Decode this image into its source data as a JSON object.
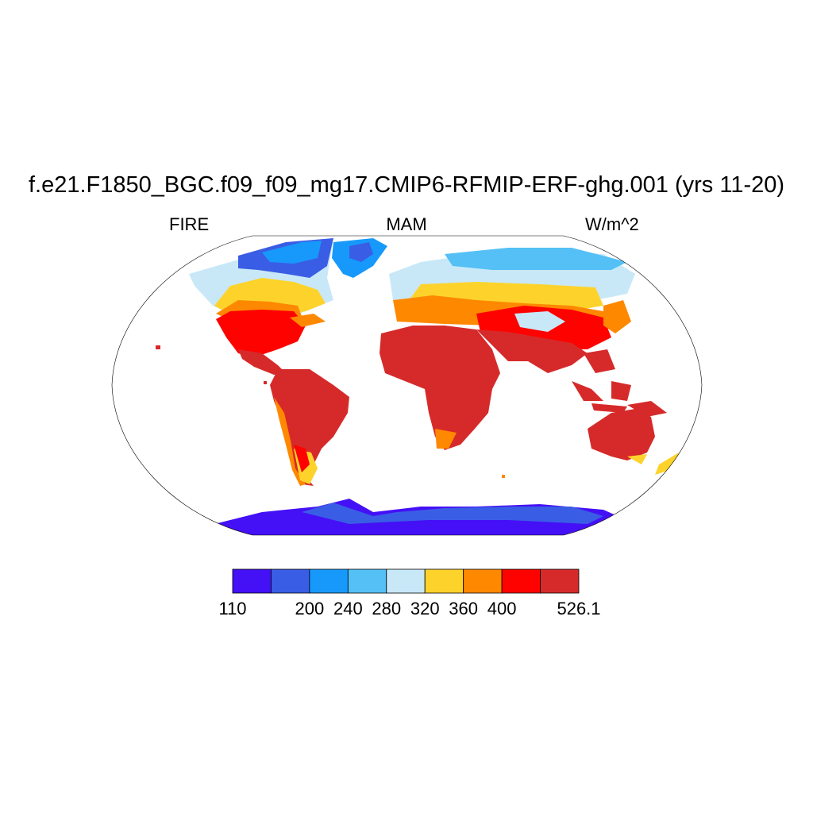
{
  "title": "f.e21.F1850_BGC.f09_f09_mg17.CMIP6-RFMIP-ERF-ghg.001 (yrs 11-20)",
  "subtitle": {
    "left": "FIRE",
    "center": "MAM",
    "right": "W/m^2"
  },
  "colorbar": {
    "colors": [
      "#4410f6",
      "#3a5de5",
      "#1799fb",
      "#54c0f5",
      "#c8e8f8",
      "#fdd32b",
      "#fe8800",
      "#fe0200",
      "#d62a2a"
    ],
    "labels": [
      "110",
      "200",
      "240",
      "280",
      "320",
      "360",
      "400",
      "526.1"
    ]
  }
}
